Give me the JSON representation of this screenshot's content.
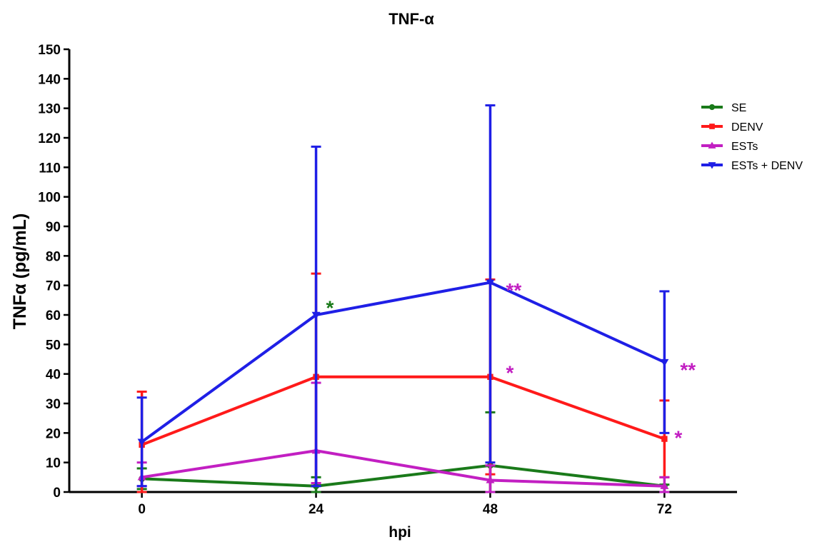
{
  "chart_data": {
    "type": "line",
    "title": "TNF-α",
    "xlabel": "hpi",
    "ylabel": "TNFα (pg/mL)",
    "x": [
      0,
      24,
      48,
      72
    ],
    "x_tick_labels": [
      "0",
      "24",
      "48",
      "72"
    ],
    "xlim": [
      -10,
      82
    ],
    "ylim": [
      0,
      150
    ],
    "y_ticks": [
      0,
      10,
      20,
      30,
      40,
      50,
      60,
      70,
      80,
      90,
      100,
      110,
      120,
      130,
      140,
      150
    ],
    "grid": false,
    "legend_position": "top-right",
    "series": [
      {
        "name": "SE",
        "color": "#1a7a1a",
        "marker": "circle",
        "values": [
          4.5,
          2,
          9,
          2
        ],
        "error_upper": [
          8,
          5,
          27,
          2.5
        ],
        "error_lower": [
          1,
          0,
          0,
          0
        ]
      },
      {
        "name": "DENV",
        "color": "#ff1a1a",
        "marker": "square",
        "values": [
          16,
          39,
          39,
          18
        ],
        "error_upper": [
          34,
          74,
          72,
          31
        ],
        "error_lower": [
          0,
          3,
          6,
          5
        ]
      },
      {
        "name": "ESTs",
        "color": "#c21fc2",
        "marker": "triangle-up",
        "values": [
          5,
          14,
          4,
          2
        ],
        "error_upper": [
          10,
          37,
          9,
          5
        ],
        "error_lower": [
          2,
          3,
          0,
          0
        ]
      },
      {
        "name": "ESTs + DENV",
        "color": "#1f1fe6",
        "marker": "triangle-down",
        "values": [
          17,
          60,
          71,
          44
        ],
        "error_upper": [
          32,
          117,
          131,
          68
        ],
        "error_lower": [
          2,
          2,
          10,
          20
        ]
      }
    ],
    "annotations": [
      {
        "text": "*",
        "x": 24,
        "y": 63,
        "color": "#1a7a1a"
      },
      {
        "text": "**",
        "x": 48,
        "y": 69,
        "color": "#c21fc2"
      },
      {
        "text": "*",
        "x": 48,
        "y": 41,
        "color": "#c21fc2"
      },
      {
        "text": "**",
        "x": 72,
        "y": 42,
        "color": "#c21fc2"
      },
      {
        "text": "*",
        "x": 72,
        "y": 19,
        "color": "#c21fc2"
      }
    ]
  }
}
